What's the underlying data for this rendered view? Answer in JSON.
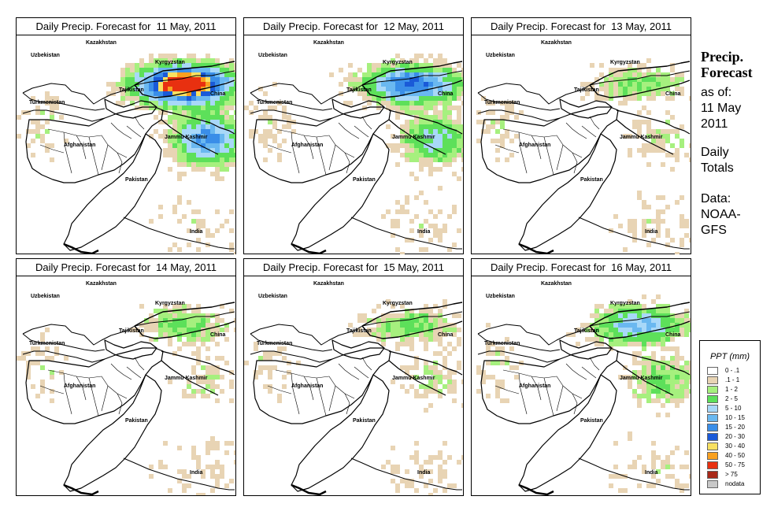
{
  "panels": [
    {
      "title": "Daily Precip. Forecast for  11 May, 2011",
      "intensity": 5
    },
    {
      "title": "Daily Precip. Forecast for  12 May, 2011",
      "intensity": 3
    },
    {
      "title": "Daily Precip. Forecast for  13 May, 2011",
      "intensity": 1
    },
    {
      "title": "Daily Precip. Forecast for  14 May, 2011",
      "intensity": 1
    },
    {
      "title": "Daily Precip. Forecast for  15 May, 2011",
      "intensity": 1
    },
    {
      "title": "Daily Precip. Forecast for  16 May, 2011",
      "intensity": 2
    }
  ],
  "map_labels": {
    "kazakhstan": "Kazakhstan",
    "uzbekistan": "Uzbekistan",
    "kyrgyzstan": "Kyrgyzstan",
    "tajikistan": "Tajikistan",
    "turkmenistan": "Turkmenistan",
    "china": "China",
    "afghanistan": "Afghanistan",
    "jammu_kashmir": "Jammu Kashmir",
    "pakistan": "Pakistan",
    "india": "India"
  },
  "side": {
    "title_line1": "Precip.",
    "title_line2": "Forecast",
    "asof": "as of:",
    "date_line1": "11 May",
    "date_line2": "2011",
    "totals_line1": "Daily",
    "totals_line2": "Totals",
    "data_line1": "Data:",
    "data_line2": "NOAA-",
    "data_line3": "GFS"
  },
  "legend": {
    "title": "PPT (mm)",
    "items": [
      {
        "label": "0 - .1",
        "color": "#ffffff"
      },
      {
        "label": ".1 - 1",
        "color": "#e8d4b4"
      },
      {
        "label": "1 - 2",
        "color": "#a6f07e"
      },
      {
        "label": "2 - 5",
        "color": "#5de05a"
      },
      {
        "label": "5 - 10",
        "color": "#a8d8f8"
      },
      {
        "label": "10 - 15",
        "color": "#6ab8f0"
      },
      {
        "label": "15 - 20",
        "color": "#3a8ee8"
      },
      {
        "label": "20 - 30",
        "color": "#1a5ad8"
      },
      {
        "label": "30 - 40",
        "color": "#f8e060"
      },
      {
        "label": "40 - 50",
        "color": "#f8a020"
      },
      {
        "label": "50 - 75",
        "color": "#e83010"
      },
      {
        "label": "> 75",
        "color": "#a82818"
      },
      {
        "label": "nodata",
        "color": "#c8c8c8"
      }
    ]
  }
}
